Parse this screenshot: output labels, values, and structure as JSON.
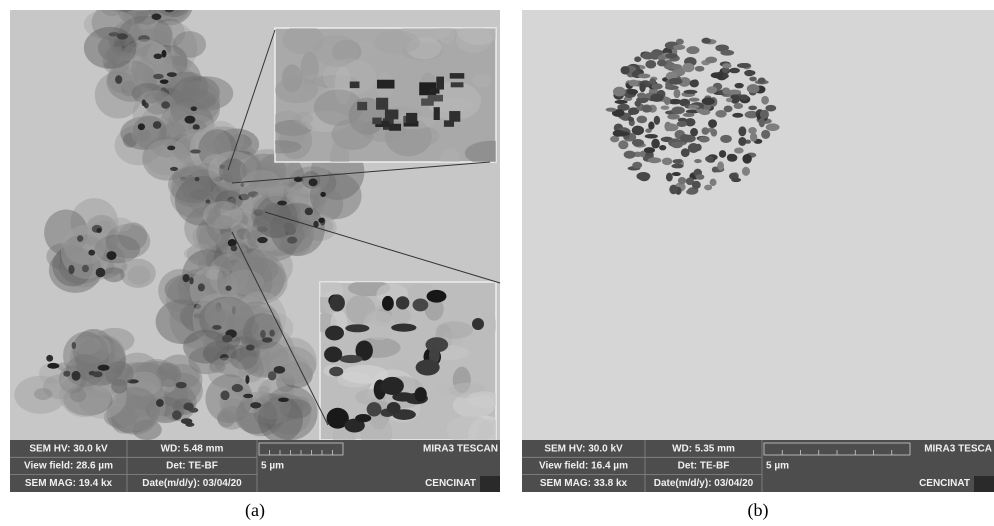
{
  "panels": [
    {
      "label": "(a)",
      "info": {
        "hv": "SEM HV: 30.0 kV",
        "wd": "WD: 5.48 mm",
        "brand": "MIRA3 TESCAN",
        "view_field": "View field: 28.6 µm",
        "det": "Det: TE-BF",
        "scale": "5 µm",
        "mag": "SEM MAG: 19.4 kx",
        "date": "Date(m/d/y): 03/04/20",
        "site": "CENCINAT"
      }
    },
    {
      "label": "(b)",
      "info": {
        "hv": "SEM HV: 30.0 kV",
        "wd": "WD: 5.35 mm",
        "brand": "MIRA3 TESCA",
        "view_field": "View field: 16.4 µm",
        "det": "Det: TE-BF",
        "scale": "5 µm",
        "mag": "SEM MAG: 33.8 kx",
        "date": "Date(m/d/y): 03/04/20",
        "site": "CENCINAT"
      }
    }
  ]
}
